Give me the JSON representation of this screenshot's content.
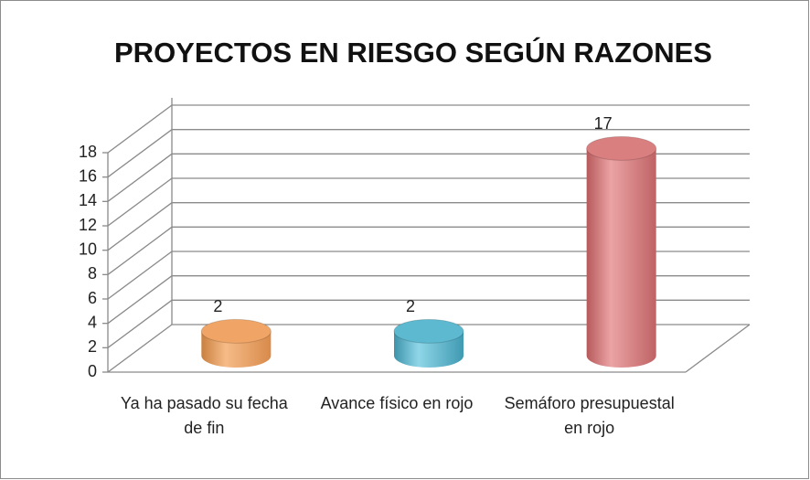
{
  "chart_data": {
    "type": "bar3d",
    "title": "PROYECTOS EN RIESGO SEGÚN RAZONES",
    "categories": [
      "Ya ha pasado su fecha de fin",
      "Avance físico en rojo",
      "Semáforo presupuestal en rojo"
    ],
    "values": [
      2,
      2,
      17
    ],
    "colors": [
      "#f0a566",
      "#5cb9d0",
      "#d97f80"
    ],
    "ylim": [
      0,
      18
    ],
    "yticks": [
      0,
      2,
      4,
      6,
      8,
      10,
      12,
      14,
      16,
      18
    ],
    "grid": true
  }
}
